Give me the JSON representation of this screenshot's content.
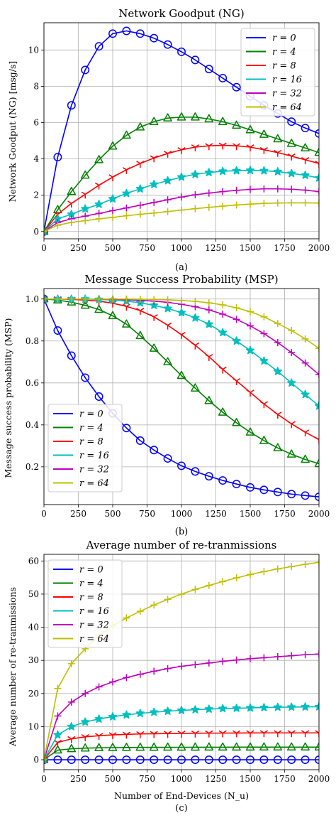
{
  "colors": {
    "r = 0": "#0000ff",
    "r = 4": "#008000",
    "r = 8": "#ff0000",
    "r = 16": "#00bfbf",
    "r = 32": "#bf00bf",
    "r = 64": "#bfbf00"
  },
  "chart_data": [
    {
      "type": "line",
      "title": "Network Goodput (NG)",
      "xlabel": "",
      "ylabel": "Network Goodput (NG) [msg/s]",
      "caption": "(a)",
      "xlim": [
        0,
        2000
      ],
      "ylim": [
        -0.4,
        11.5
      ],
      "xticks": [
        0,
        250,
        500,
        750,
        1000,
        1250,
        1500,
        1750,
        2000
      ],
      "yticks": [
        0,
        2,
        4,
        6,
        8,
        10
      ],
      "grid": true,
      "legend": "top-right",
      "x": [
        0,
        100,
        200,
        300,
        400,
        500,
        600,
        700,
        800,
        900,
        1000,
        1100,
        1200,
        1300,
        1400,
        1500,
        1600,
        1700,
        1800,
        1900,
        2000
      ],
      "series": [
        {
          "name": "r = 0",
          "marker": "circle",
          "values": [
            0,
            4.1,
            6.95,
            8.9,
            10.2,
            10.9,
            11.05,
            10.9,
            10.65,
            10.3,
            9.9,
            9.45,
            8.95,
            8.45,
            7.95,
            7.45,
            6.95,
            6.5,
            6.05,
            5.7,
            5.4
          ]
        },
        {
          "name": "r = 4",
          "marker": "triangle",
          "values": [
            0,
            1.2,
            2.2,
            3.1,
            3.95,
            4.7,
            5.3,
            5.75,
            6.05,
            6.25,
            6.3,
            6.3,
            6.2,
            6.05,
            5.85,
            5.6,
            5.35,
            5.1,
            4.85,
            4.6,
            4.35
          ]
        },
        {
          "name": "r = 8",
          "marker": "tri_down",
          "values": [
            0,
            0.95,
            1.55,
            2.05,
            2.55,
            3.0,
            3.4,
            3.75,
            4.05,
            4.3,
            4.5,
            4.65,
            4.72,
            4.75,
            4.72,
            4.65,
            4.5,
            4.35,
            4.15,
            3.95,
            3.75
          ]
        },
        {
          "name": "r = 16",
          "marker": "star",
          "values": [
            0,
            0.7,
            0.95,
            1.25,
            1.5,
            1.8,
            2.1,
            2.35,
            2.6,
            2.8,
            3.0,
            3.15,
            3.25,
            3.32,
            3.35,
            3.37,
            3.35,
            3.3,
            3.2,
            3.1,
            2.95
          ]
        },
        {
          "name": "r = 32",
          "marker": "plus",
          "values": [
            0,
            0.5,
            0.7,
            0.85,
            1.0,
            1.15,
            1.3,
            1.45,
            1.6,
            1.75,
            1.9,
            2.02,
            2.12,
            2.2,
            2.27,
            2.32,
            2.35,
            2.35,
            2.33,
            2.28,
            2.2
          ]
        },
        {
          "name": "r = 64",
          "marker": "plus",
          "values": [
            0,
            0.35,
            0.5,
            0.6,
            0.7,
            0.78,
            0.87,
            0.95,
            1.02,
            1.1,
            1.18,
            1.26,
            1.33,
            1.4,
            1.46,
            1.51,
            1.55,
            1.57,
            1.58,
            1.58,
            1.57
          ]
        }
      ]
    },
    {
      "type": "line",
      "title": "Message Success Probability (MSP)",
      "xlabel": "",
      "ylabel": "Message success probability (MSP)",
      "caption": "(b)",
      "xlim": [
        0,
        2000
      ],
      "ylim": [
        0.02,
        1.05
      ],
      "xticks": [
        0,
        250,
        500,
        750,
        1000,
        1250,
        1500,
        1750,
        2000
      ],
      "yticks": [
        0.2,
        0.4,
        0.6,
        0.8,
        1.0
      ],
      "yticklabels": [
        "0.2",
        "0.4",
        "0.6",
        "0.8",
        "1.0"
      ],
      "grid": true,
      "legend": "bottom-left",
      "x": [
        0,
        100,
        200,
        300,
        400,
        500,
        600,
        700,
        800,
        900,
        1000,
        1100,
        1200,
        1300,
        1400,
        1500,
        1600,
        1700,
        1800,
        1900,
        2000
      ],
      "series": [
        {
          "name": "r = 0",
          "marker": "circle",
          "values": [
            1.0,
            0.85,
            0.73,
            0.625,
            0.535,
            0.455,
            0.385,
            0.325,
            0.28,
            0.24,
            0.205,
            0.178,
            0.155,
            0.135,
            0.118,
            0.102,
            0.09,
            0.08,
            0.07,
            0.063,
            0.057
          ]
        },
        {
          "name": "r = 4",
          "marker": "triangle",
          "values": [
            1.0,
            0.995,
            0.985,
            0.97,
            0.95,
            0.92,
            0.88,
            0.825,
            0.765,
            0.7,
            0.635,
            0.575,
            0.515,
            0.46,
            0.41,
            0.365,
            0.325,
            0.29,
            0.26,
            0.235,
            0.215
          ]
        },
        {
          "name": "r = 8",
          "marker": "tri_down",
          "values": [
            1.0,
            1.0,
            0.998,
            0.995,
            0.99,
            0.98,
            0.965,
            0.945,
            0.915,
            0.875,
            0.83,
            0.78,
            0.725,
            0.665,
            0.61,
            0.555,
            0.5,
            0.45,
            0.405,
            0.365,
            0.33
          ]
        },
        {
          "name": "r = 16",
          "marker": "star",
          "values": [
            1.0,
            1.0,
            1.0,
            1.0,
            0.998,
            0.995,
            0.99,
            0.982,
            0.97,
            0.955,
            0.935,
            0.91,
            0.88,
            0.84,
            0.8,
            0.755,
            0.705,
            0.655,
            0.6,
            0.545,
            0.49
          ]
        },
        {
          "name": "r = 32",
          "marker": "plus",
          "values": [
            1.0,
            1.0,
            1.0,
            1.0,
            1.0,
            0.999,
            0.997,
            0.994,
            0.99,
            0.984,
            0.975,
            0.963,
            0.948,
            0.928,
            0.903,
            0.872,
            0.835,
            0.792,
            0.745,
            0.695,
            0.64
          ]
        },
        {
          "name": "r = 64",
          "marker": "plus",
          "values": [
            1.0,
            1.0,
            1.0,
            1.0,
            1.0,
            1.0,
            1.0,
            0.999,
            0.998,
            0.996,
            0.993,
            0.989,
            0.982,
            0.972,
            0.958,
            0.94,
            0.915,
            0.883,
            0.85,
            0.81,
            0.765
          ]
        }
      ]
    },
    {
      "type": "line",
      "title": "Average number of re-tranmissions",
      "xlabel": "Number of End-Devices (N_u)",
      "ylabel": "Average number of re-tranmissions",
      "caption": "(c)",
      "xlim": [
        0,
        2000
      ],
      "ylim": [
        -3,
        62
      ],
      "xticks": [
        0,
        250,
        500,
        750,
        1000,
        1250,
        1500,
        1750,
        2000
      ],
      "yticks": [
        0,
        10,
        20,
        30,
        40,
        50,
        60
      ],
      "grid": true,
      "legend": "top-left",
      "x": [
        0,
        100,
        200,
        300,
        400,
        500,
        600,
        700,
        800,
        900,
        1000,
        1100,
        1200,
        1300,
        1400,
        1500,
        1600,
        1700,
        1800,
        1900,
        2000
      ],
      "series": [
        {
          "name": "r = 0",
          "marker": "circle",
          "values": [
            0,
            0,
            0,
            0,
            0,
            0,
            0,
            0,
            0,
            0,
            0,
            0,
            0,
            0,
            0,
            0,
            0,
            0,
            0,
            0,
            0
          ]
        },
        {
          "name": "r = 4",
          "marker": "triangle",
          "values": [
            0,
            2.9,
            3.3,
            3.5,
            3.6,
            3.65,
            3.7,
            3.72,
            3.74,
            3.75,
            3.76,
            3.77,
            3.78,
            3.78,
            3.79,
            3.79,
            3.8,
            3.8,
            3.8,
            3.8,
            3.8
          ]
        },
        {
          "name": "r = 8",
          "marker": "tri_down",
          "values": [
            0,
            5.2,
            6.3,
            6.9,
            7.25,
            7.5,
            7.65,
            7.78,
            7.85,
            7.9,
            7.95,
            8.0,
            8.02,
            8.05,
            8.07,
            8.08,
            8.1,
            8.1,
            8.1,
            8.1,
            8.1
          ]
        },
        {
          "name": "r = 16",
          "marker": "star",
          "values": [
            0,
            7.5,
            10.0,
            11.4,
            12.3,
            13.0,
            13.55,
            14.0,
            14.35,
            14.65,
            14.9,
            15.1,
            15.3,
            15.45,
            15.55,
            15.65,
            15.75,
            15.85,
            15.9,
            15.95,
            16.0
          ]
        },
        {
          "name": "r = 32",
          "marker": "plus",
          "values": [
            0,
            13.2,
            17.4,
            20.0,
            22.0,
            23.5,
            24.8,
            25.8,
            26.7,
            27.5,
            28.2,
            28.7,
            29.2,
            29.7,
            30.1,
            30.5,
            30.8,
            31.1,
            31.4,
            31.7,
            31.9
          ]
        },
        {
          "name": "r = 64",
          "marker": "plus",
          "values": [
            0,
            21.5,
            29.0,
            33.5,
            37.5,
            40.5,
            42.8,
            44.8,
            46.7,
            48.4,
            50.0,
            51.4,
            52.6,
            53.8,
            54.9,
            55.9,
            56.8,
            57.6,
            58.3,
            59.0,
            59.6
          ]
        }
      ]
    }
  ]
}
